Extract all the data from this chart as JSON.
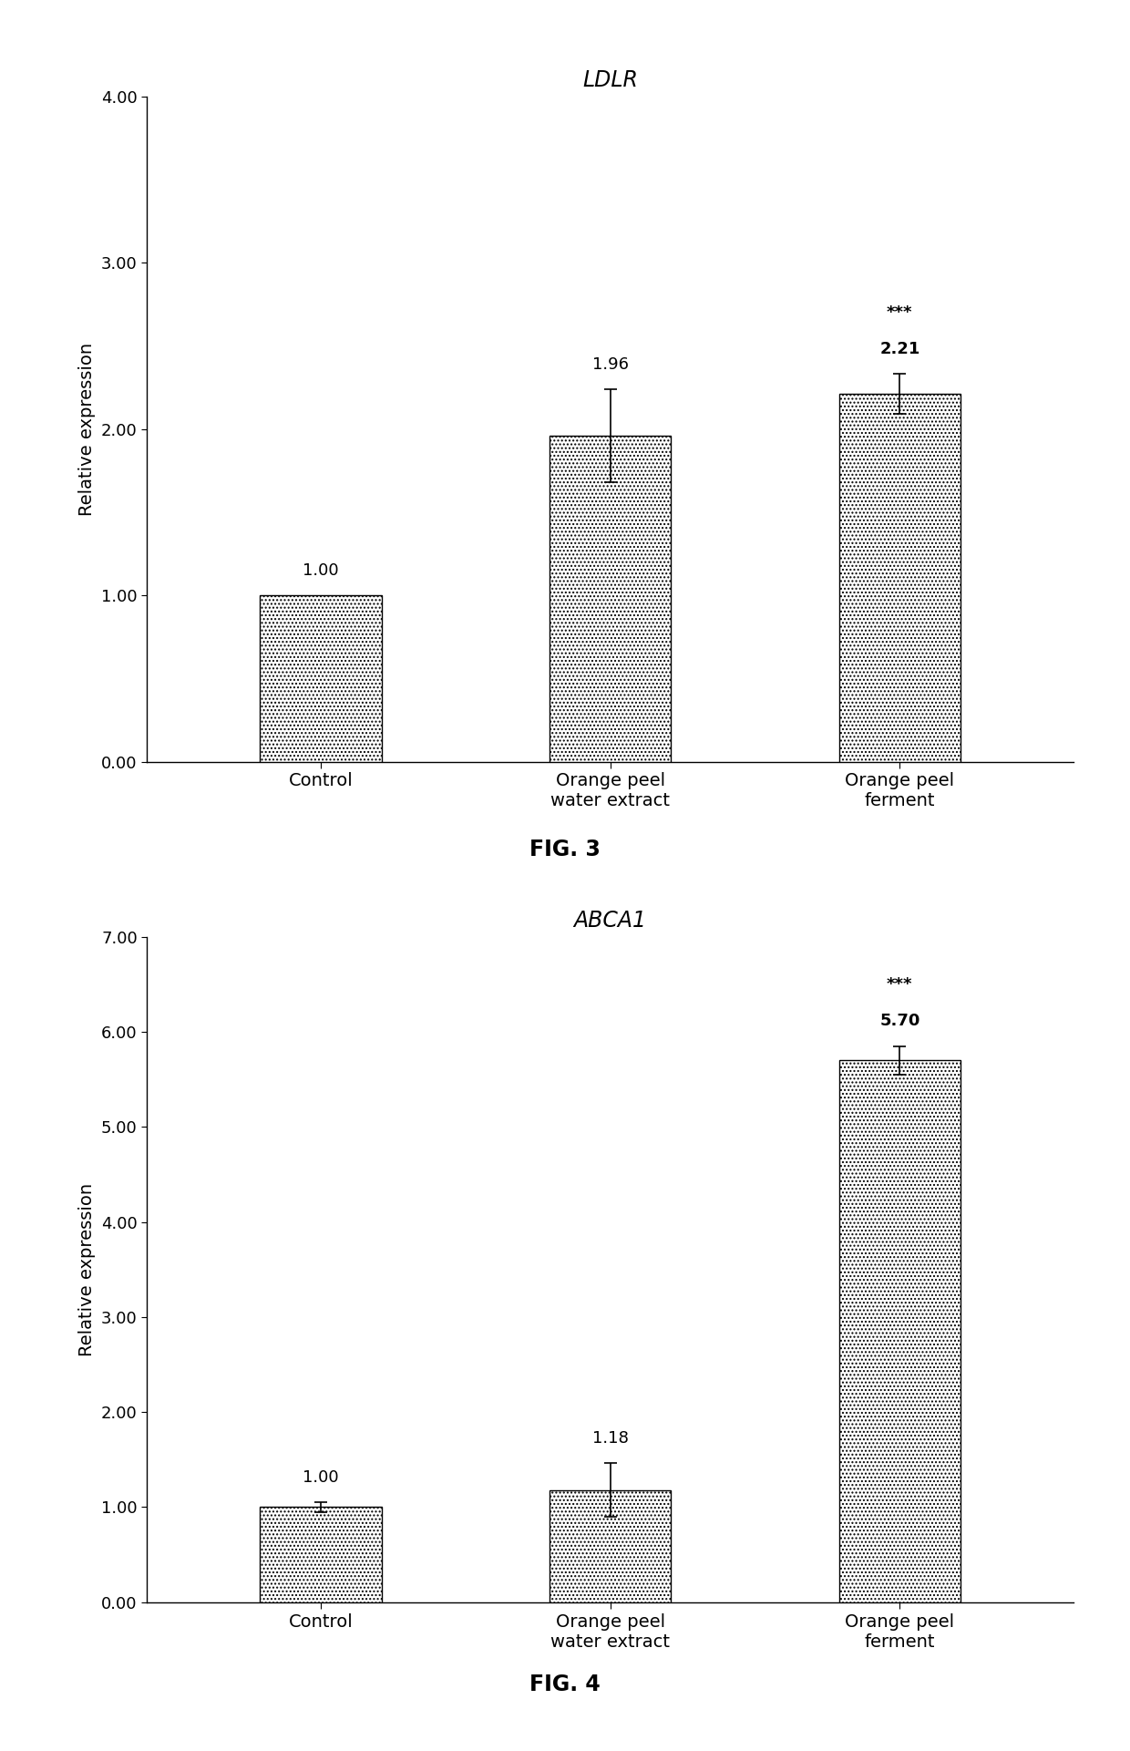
{
  "fig1": {
    "title": "LDLR",
    "ylabel": "Relative expression",
    "categories": [
      "Control",
      "Orange peel\nwater extract",
      "Orange peel\nferment"
    ],
    "values": [
      1.0,
      1.96,
      2.21
    ],
    "errors": [
      0.0,
      0.28,
      0.12
    ],
    "value_labels": [
      "1.00",
      "1.96",
      "2.21"
    ],
    "significance": [
      "",
      "",
      "***"
    ],
    "ylim": [
      0,
      4.0
    ],
    "yticks": [
      0.0,
      1.0,
      2.0,
      3.0,
      4.0
    ],
    "ytick_labels": [
      "0.00",
      "1.00",
      "2.00",
      "3.00",
      "4.00"
    ],
    "fig_label": "FIG. 3"
  },
  "fig2": {
    "title": "ABCA1",
    "ylabel": "Relative expression",
    "categories": [
      "Control",
      "Orange peel\nwater extract",
      "Orange peel\nferment"
    ],
    "values": [
      1.0,
      1.18,
      5.7
    ],
    "errors": [
      0.05,
      0.28,
      0.15
    ],
    "value_labels": [
      "1.00",
      "1.18",
      "5.70"
    ],
    "significance": [
      "",
      "",
      "***"
    ],
    "ylim": [
      0,
      7.0
    ],
    "yticks": [
      0.0,
      1.0,
      2.0,
      3.0,
      4.0,
      5.0,
      6.0,
      7.0
    ],
    "ytick_labels": [
      "0.00",
      "1.00",
      "2.00",
      "3.00",
      "4.00",
      "5.00",
      "6.00",
      "7.00"
    ],
    "fig_label": "FIG. 4"
  },
  "bar_color": "#ffffff",
  "bar_edgecolor": "#000000",
  "bar_width": 0.42,
  "hatch": "....",
  "background_color": "#ffffff",
  "title_fontsize": 17,
  "label_fontsize": 14,
  "tick_fontsize": 13,
  "value_fontsize": 13,
  "sig_fontsize": 13,
  "fig_label_fontsize": 17
}
